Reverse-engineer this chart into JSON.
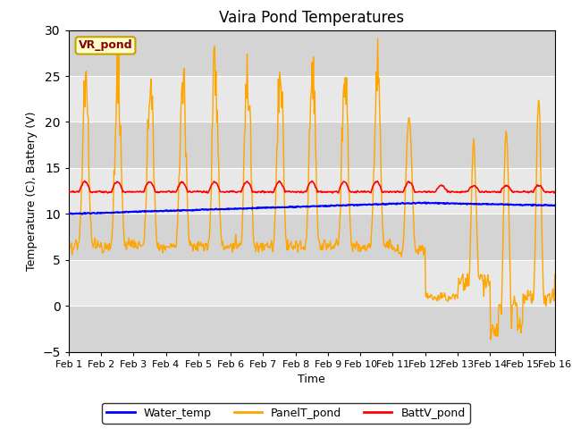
{
  "title": "Vaira Pond Temperatures",
  "xlabel": "Time",
  "ylabel": "Temperature (C), Battery (V)",
  "xlim": [
    0,
    15
  ],
  "ylim": [
    -5,
    30
  ],
  "yticks": [
    -5,
    0,
    5,
    10,
    15,
    20,
    25,
    30
  ],
  "xtick_labels": [
    "Feb 1",
    "Feb 2",
    "Feb 3",
    "Feb 4",
    "Feb 5",
    "Feb 6",
    "Feb 7",
    "Feb 8",
    "Feb 9",
    "Feb 10",
    "Feb 11",
    "Feb 12",
    "Feb 13",
    "Feb 14",
    "Feb 15",
    "Feb 16"
  ],
  "xtick_positions": [
    0,
    1,
    2,
    3,
    4,
    5,
    6,
    7,
    8,
    9,
    10,
    11,
    12,
    13,
    14,
    15
  ],
  "fig_bg_color": "#ffffff",
  "plot_bg_color": "#e8e8e8",
  "band_light": "#e8e8e8",
  "band_dark": "#d4d4d4",
  "water_temp_color": "#0000ff",
  "panel_temp_color": "#ffa500",
  "batt_color": "#ff0000",
  "annotation_text": "VR_pond",
  "annotation_bg": "#ffffcc",
  "annotation_border": "#c8a000",
  "legend_water": "Water_temp",
  "legend_panel": "PanelT_pond",
  "legend_batt": "BattV_pond",
  "title_fontsize": 12,
  "axis_fontsize": 9,
  "tick_fontsize": 8
}
